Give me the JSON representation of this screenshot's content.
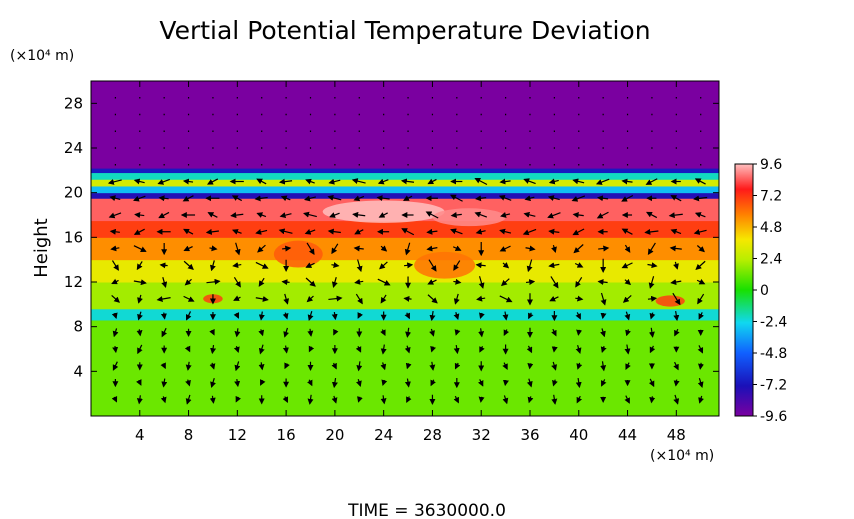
{
  "chart_data": {
    "type": "heatmap",
    "title": "Vertial Potential Temperature Deviation",
    "ylabel": "Height",
    "y_unit": "(×10⁴ m)",
    "x_unit": "(×10⁴ m)",
    "footer": "TIME  =  3630000.0",
    "xlim": [
      0,
      51.5
    ],
    "ylim": [
      0,
      30
    ],
    "x_ticks": [
      4,
      8,
      12,
      16,
      20,
      24,
      28,
      32,
      36,
      40,
      44,
      48
    ],
    "y_ticks": [
      4,
      8,
      12,
      16,
      20,
      24,
      28
    ],
    "colorbar": {
      "min": -9.6,
      "max": 9.6,
      "tick_values": [
        9.6,
        7.2,
        4.8,
        2.4,
        0,
        -2.4,
        -4.8,
        -7.2,
        -9.6
      ],
      "tick_labels": [
        "9.6",
        "7.2",
        "4.8",
        "2.4",
        "0",
        "-2.4",
        "-4.8",
        "-7.2",
        "-9.6"
      ]
    },
    "bands": [
      {
        "y0": 0,
        "y1": 8.6,
        "value": 1.2
      },
      {
        "y0": 8.6,
        "y1": 9.6,
        "value": -2.2
      },
      {
        "y0": 9.6,
        "y1": 12.0,
        "value": 2.0
      },
      {
        "y0": 12.0,
        "y1": 14.0,
        "value": 3.5
      },
      {
        "y0": 14.0,
        "y1": 16.0,
        "value": 5.5
      },
      {
        "y0": 16.0,
        "y1": 17.5,
        "value": 7.0
      },
      {
        "y0": 17.5,
        "y1": 19.5,
        "value": 8.5
      },
      {
        "y0": 19.5,
        "y1": 20.0,
        "value": -7.5
      },
      {
        "y0": 20.0,
        "y1": 20.6,
        "value": -3.0
      },
      {
        "y0": 20.6,
        "y1": 21.2,
        "value": 3.0
      },
      {
        "y0": 21.2,
        "y1": 21.8,
        "value": -2.0
      },
      {
        "y0": 21.8,
        "y1": 22.2,
        "value": -7.0
      },
      {
        "y0": 22.2,
        "y1": 30,
        "value": -9.6
      }
    ],
    "patches": [
      {
        "x": 24,
        "y": 18.3,
        "rx": 5,
        "ry": 1.0,
        "value": 9.6
      },
      {
        "x": 31,
        "y": 17.8,
        "rx": 3,
        "ry": 0.8,
        "value": 9.0
      },
      {
        "x": 17,
        "y": 14.5,
        "rx": 2,
        "ry": 1.2,
        "value": 6.5
      },
      {
        "x": 29,
        "y": 13.5,
        "rx": 2.5,
        "ry": 1.2,
        "value": 6.0
      },
      {
        "x": 47.5,
        "y": 10.3,
        "rx": 1.2,
        "ry": 0.5,
        "value": 7.0
      },
      {
        "x": 10,
        "y": 10.5,
        "rx": 0.8,
        "ry": 0.4,
        "value": 7.0
      }
    ],
    "vector_grid": {
      "x": [
        2,
        4,
        6,
        8,
        10,
        12,
        14,
        16,
        18,
        20,
        22,
        24,
        26,
        28,
        30,
        32,
        34,
        36,
        38,
        40,
        42,
        44,
        46,
        48,
        50
      ],
      "y": [
        1.5,
        3,
        4.5,
        6,
        7.5,
        9,
        10.5,
        12,
        13.5,
        15,
        16.5,
        18,
        19.5,
        21,
        22.5,
        24,
        25.5,
        27,
        28.5
      ]
    }
  }
}
